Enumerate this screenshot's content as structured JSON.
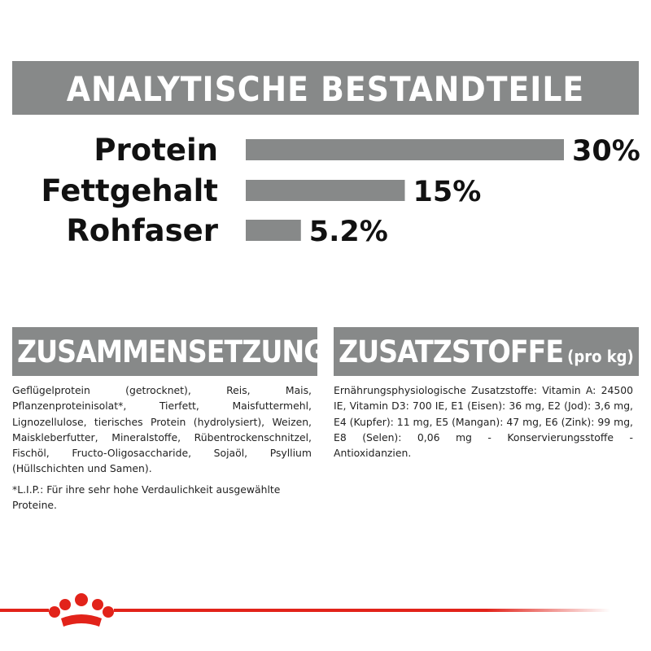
{
  "chart_data": {
    "type": "bar",
    "title": "ANALYTISCHE BESTANDTEILE",
    "categories": [
      "Protein",
      "Fettgehalt",
      "Rohfaser"
    ],
    "values": [
      30,
      15,
      5.2
    ],
    "value_labels": [
      "30%",
      "15%",
      "5.2%"
    ],
    "color": "#878989"
  },
  "composition": {
    "title": "ZUSAMMENSETZUNG",
    "text": "Geflügelprotein (getrocknet), Reis, Mais, Pflanzenproteinisolat*, Tierfett, Maisfuttermehl, Lignozellulose, tierisches Protein (hydrolysiert), Weizen, Maiskleberfutter, Mineralstoffe, Rübentrockenschnitzel, Fischöl, Fructo-Oligosaccharide, Sojaöl, Psyllium (Hüllschichten und Samen).",
    "note": "*L.I.P.: Für ihre sehr hohe Verdaulichkeit ausgewählte Proteine."
  },
  "additives": {
    "title": "ZUSATZSTOFFE",
    "unit": "(pro kg)",
    "text": "Ernährungsphysiologische Zusatzstoffe: Vitamin A: 24500 IE, Vitamin D3: 700 IE, E1 (Eisen): 36 mg, E2 (Jod): 3,6 mg, E4 (Kupfer): 11 mg, E5 (Mangan): 47 mg, E6 (Zink): 99 mg, E8 (Selen): 0,06 mg - Konservierungsstoffe - Antioxidanzien."
  }
}
